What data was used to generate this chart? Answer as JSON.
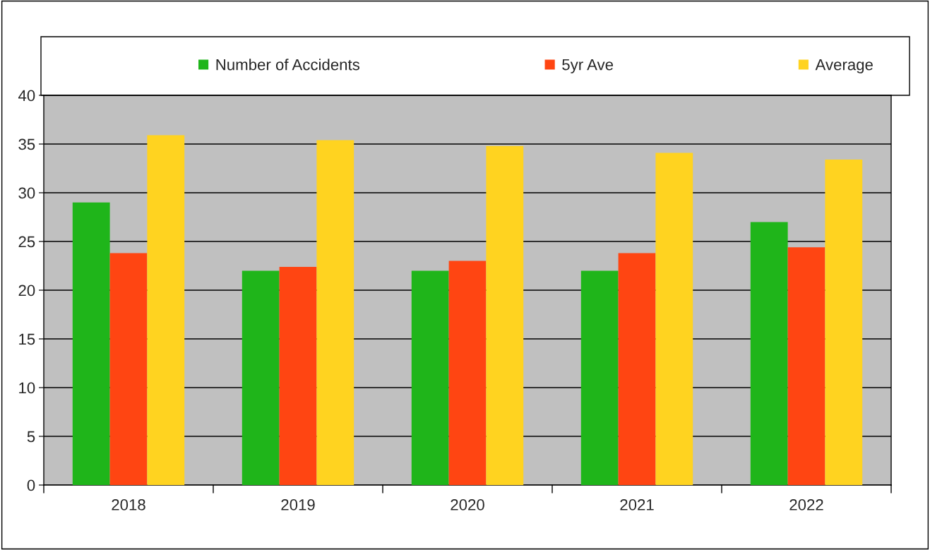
{
  "chart_data": {
    "type": "bar",
    "categories": [
      "2018",
      "2019",
      "2020",
      "2021",
      "2022"
    ],
    "series": [
      {
        "name": "Number of Accidents",
        "color": "#1fb51a",
        "values": [
          29,
          22,
          22,
          22,
          27
        ]
      },
      {
        "name": "5yr Ave",
        "color": "#ff4512",
        "values": [
          23.8,
          22.4,
          23.0,
          23.8,
          24.4
        ]
      },
      {
        "name": "Average",
        "color": "#ffd320",
        "values": [
          35.9,
          35.4,
          34.8,
          34.1,
          33.4
        ]
      }
    ],
    "ylim": [
      0,
      40
    ],
    "yticks": [
      0,
      5,
      10,
      15,
      20,
      25,
      30,
      35,
      40
    ],
    "grid": "y",
    "legend": "top"
  }
}
